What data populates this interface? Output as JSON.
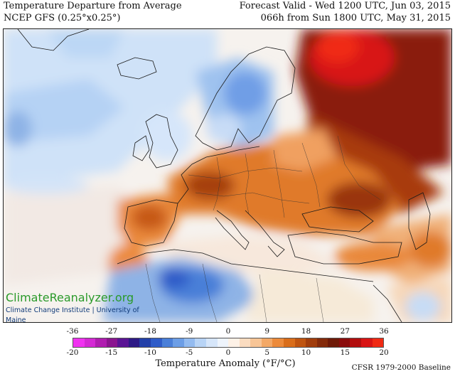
{
  "header": {
    "title": "Temperature Departure from Average",
    "model": "NCEP GFS (0.25°x0.25°)",
    "forecast_valid": "Forecast Valid - Wed 1200 UTC, Jun 03, 2015",
    "lead_time": "066h from Sun 1800 UTC, May 31, 2015"
  },
  "watermark": {
    "logo": "ClimateReanalyzer.org",
    "subtitle": "Climate Change Institute | University of Maine"
  },
  "legend": {
    "title": "Temperature Anomaly (°F/°C)",
    "fahrenheit_ticks": [
      "-36",
      "-27",
      "-18",
      "-9",
      "0",
      "9",
      "18",
      "27",
      "36"
    ],
    "celsius_ticks": [
      "-20",
      "-15",
      "-10",
      "-5",
      "0",
      "5",
      "10",
      "15",
      "20"
    ],
    "colors": [
      "#f032f0",
      "#d428d4",
      "#b01cb0",
      "#8a148f",
      "#5a1494",
      "#2d1a86",
      "#2340a8",
      "#2f5cc8",
      "#4a7fd8",
      "#6c9ee6",
      "#93bbf0",
      "#b8d4f6",
      "#d6e6fa",
      "#eef4fc",
      "#fdf1e6",
      "#fbdcc0",
      "#f8c596",
      "#f3a866",
      "#ec8a3a",
      "#d96d1a",
      "#bf5410",
      "#a13d0c",
      "#842a0a",
      "#6e1a08",
      "#8a0c0c",
      "#b20e0e",
      "#d81414",
      "#f02a14"
    ]
  },
  "baseline": "CFSR 1979-2000 Baseline"
}
